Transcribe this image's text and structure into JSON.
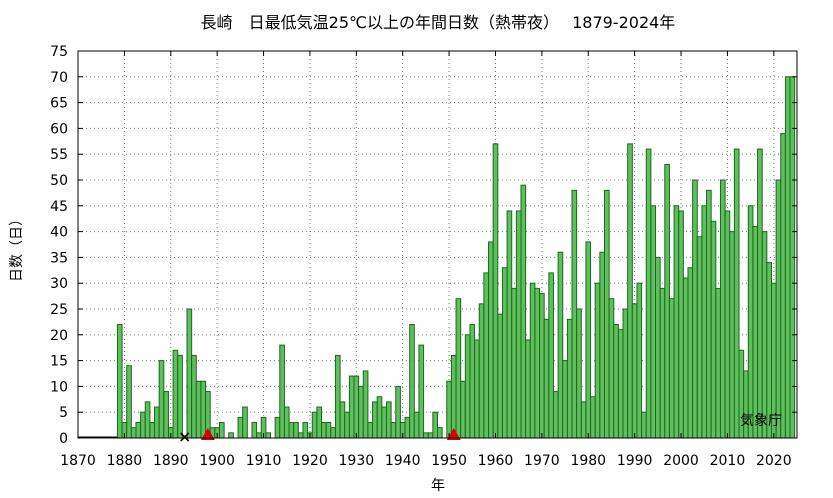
{
  "chart_data": {
    "type": "bar",
    "title": "長崎　日最低気温25℃以上の年間日数（熱帯夜）　 1879-2024年",
    "xlabel": "年",
    "ylabel": "日数（日）",
    "credit": "気象庁",
    "xlim": [
      1870,
      2025
    ],
    "ylim": [
      0,
      75
    ],
    "xticks": [
      1870,
      1880,
      1890,
      1900,
      1910,
      1920,
      1930,
      1940,
      1950,
      1960,
      1970,
      1980,
      1990,
      2000,
      2010,
      2020
    ],
    "yticks": [
      0,
      5,
      10,
      15,
      20,
      25,
      30,
      35,
      40,
      45,
      50,
      55,
      60,
      65,
      70,
      75
    ],
    "grid": true,
    "bar_color": "#5fbf5f",
    "bar_edge_color": "#1a6b1a",
    "marker_color": "#dd0000",
    "x_start": 1879,
    "values": [
      22,
      3,
      14,
      2,
      3,
      5,
      7,
      3,
      6,
      15,
      9,
      2,
      17,
      16,
      0,
      25,
      16,
      11,
      11,
      9,
      2,
      2,
      3,
      0,
      1,
      0,
      4,
      6,
      0,
      3,
      1,
      4,
      1,
      0,
      4,
      18,
      6,
      3,
      3,
      1,
      3,
      1,
      5,
      6,
      3,
      3,
      2,
      16,
      7,
      5,
      12,
      12,
      10,
      13,
      3,
      7,
      8,
      6,
      7,
      3,
      10,
      3,
      4,
      22,
      5,
      18,
      1,
      1,
      5,
      2,
      0,
      11,
      16,
      27,
      11,
      20,
      22,
      19,
      26,
      32,
      38,
      57,
      24,
      33,
      44,
      29,
      44,
      49,
      19,
      30,
      29,
      28,
      23,
      32,
      9,
      36,
      15,
      23,
      48,
      25,
      7,
      38,
      8,
      30,
      36,
      48,
      27,
      22,
      21,
      25,
      57,
      26,
      30,
      5,
      56,
      45,
      35,
      29,
      53,
      27,
      45,
      44,
      31,
      33,
      50,
      39,
      45,
      48,
      42,
      29,
      50,
      44,
      40,
      56,
      17,
      13,
      45,
      41,
      56,
      40,
      34,
      30,
      50,
      59,
      70,
      70
    ],
    "missing_years": [
      1893
    ],
    "station_relocation_years": [
      1898,
      1951
    ]
  }
}
